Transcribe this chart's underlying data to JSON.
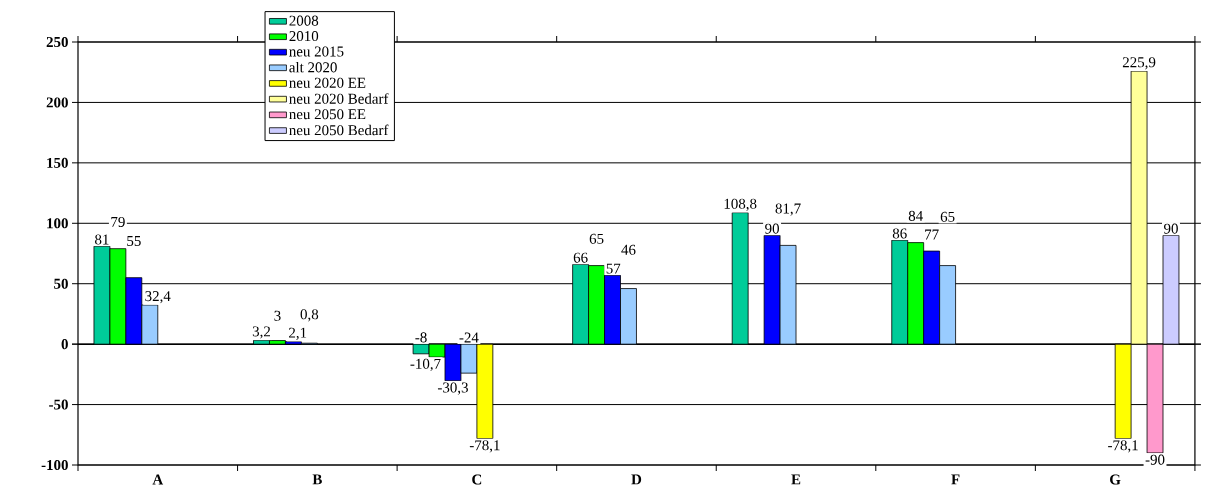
{
  "chart_data": {
    "type": "bar",
    "categories": [
      "A",
      "B",
      "C",
      "D",
      "E",
      "F",
      "G"
    ],
    "series": [
      {
        "name": "2008",
        "color": "#00cc99",
        "values": [
          81,
          3.2,
          -8,
          66,
          108.8,
          86,
          null
        ],
        "value_labels": [
          "81",
          "3,2",
          "-8",
          "66",
          "108,8",
          "86",
          null
        ]
      },
      {
        "name": "2010",
        "color": "#00ff00",
        "values": [
          79,
          3,
          -10.7,
          65,
          null,
          84,
          null
        ],
        "value_labels": [
          "79",
          "3",
          "-10,7",
          "65",
          null,
          "84",
          null
        ]
      },
      {
        "name": "neu 2015",
        "color": "#0000ff",
        "values": [
          55,
          2.1,
          -30.3,
          57,
          90,
          77,
          null
        ],
        "value_labels": [
          "55",
          "2,1",
          "-30,3",
          "57",
          "90",
          "77",
          null
        ]
      },
      {
        "name": "alt 2020",
        "color": "#99ccff",
        "values": [
          32.4,
          0.8,
          -24,
          46,
          81.7,
          65,
          null
        ],
        "value_labels": [
          "32,4",
          "0,8",
          "-24",
          "46",
          "81,7",
          "65",
          null
        ]
      },
      {
        "name": "neu 2020 EE",
        "color": "#ffff00",
        "values": [
          null,
          null,
          -78.1,
          null,
          null,
          null,
          -78.1
        ],
        "value_labels": [
          null,
          null,
          "-78,1",
          null,
          null,
          null,
          "-78,1"
        ]
      },
      {
        "name": "neu 2020 Bedarf",
        "color": "#ffff99",
        "values": [
          null,
          null,
          null,
          null,
          null,
          null,
          225.9
        ],
        "value_labels": [
          null,
          null,
          null,
          null,
          null,
          null,
          "225,9"
        ]
      },
      {
        "name": "neu 2050 EE",
        "color": "#ff99cc",
        "values": [
          null,
          null,
          null,
          null,
          null,
          null,
          -90
        ],
        "value_labels": [
          null,
          null,
          null,
          null,
          null,
          null,
          "-90"
        ]
      },
      {
        "name": "neu 2050 Bedarf",
        "color": "#ccccff",
        "values": [
          null,
          null,
          null,
          null,
          null,
          null,
          90
        ],
        "value_labels": [
          null,
          null,
          null,
          null,
          null,
          null,
          "90"
        ]
      }
    ],
    "ylim": [
      -100,
      250
    ],
    "yticks": [
      -100,
      -50,
      0,
      50,
      100,
      150,
      200,
      250
    ],
    "grid": "y",
    "legend": "top"
  }
}
